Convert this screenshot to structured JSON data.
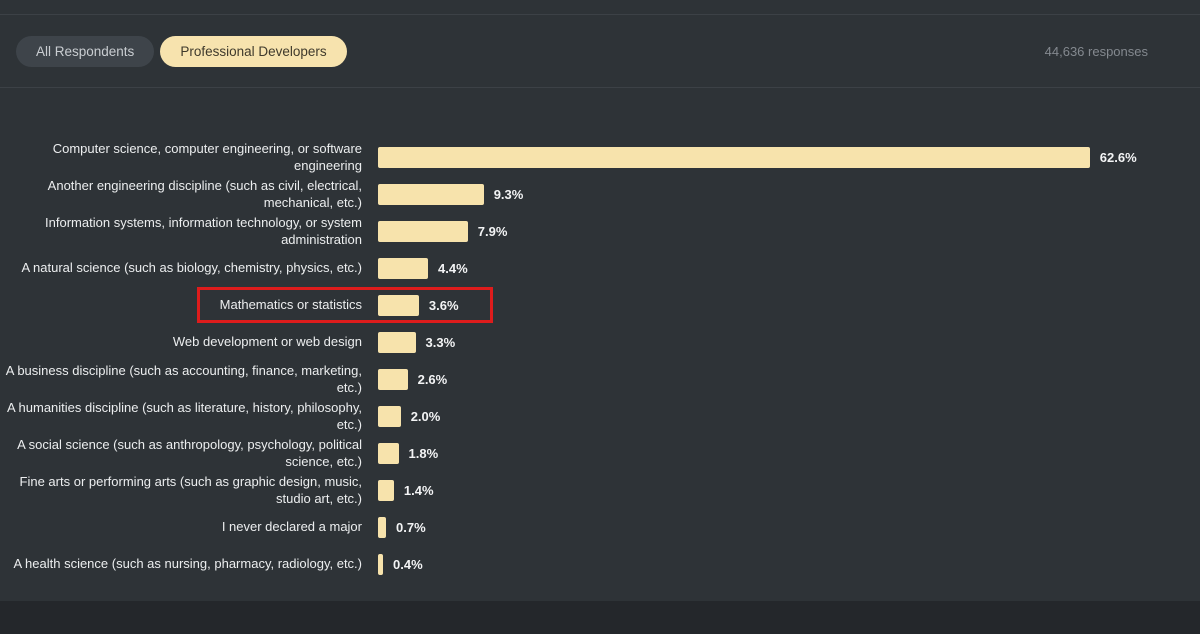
{
  "header": {
    "toggle": [
      {
        "label": "All Respondents",
        "active": false
      },
      {
        "label": "Professional Developers",
        "active": true
      }
    ],
    "responses": "44,636 responses"
  },
  "colors": {
    "background": "#2e3337",
    "bar": "#f7e3ac",
    "active_pill": "#f7e3ae",
    "inactive_pill": "#3e444a",
    "highlight": "#de1c1c",
    "text": "#eceeef",
    "muted_text": "#84898f"
  },
  "chart_data": {
    "type": "bar",
    "orientation": "horizontal",
    "title": "",
    "xlabel": "",
    "ylabel": "",
    "xlim": [
      0,
      65
    ],
    "grid": false,
    "legend": false,
    "bar_color": "#f7e3ac",
    "highlighted_category": "Mathematics or statistics",
    "categories": [
      "Computer science, computer engineering, or software engineering",
      "Another engineering discipline (such as civil, electrical, mechanical, etc.)",
      "Information systems, information technology, or system administration",
      "A natural science (such as biology, chemistry, physics, etc.)",
      "Mathematics or statistics",
      "Web development or web design",
      "A business discipline (such as accounting, finance, marketing, etc.)",
      "A humanities discipline (such as literature, history, philosophy, etc.)",
      "A social science (such as anthropology, psychology, political science, etc.)",
      "Fine arts or performing arts (such as graphic design, music, studio art, etc.)",
      "I never declared a major",
      "A health science (such as nursing, pharmacy, radiology, etc.)"
    ],
    "values": [
      62.6,
      9.3,
      7.9,
      4.4,
      3.6,
      3.3,
      2.6,
      2.0,
      1.8,
      1.4,
      0.7,
      0.4
    ],
    "value_labels": [
      "62.6%",
      "9.3%",
      "7.9%",
      "4.4%",
      "3.6%",
      "3.3%",
      "2.6%",
      "2.0%",
      "1.8%",
      "1.4%",
      "0.7%",
      "0.4%"
    ]
  }
}
